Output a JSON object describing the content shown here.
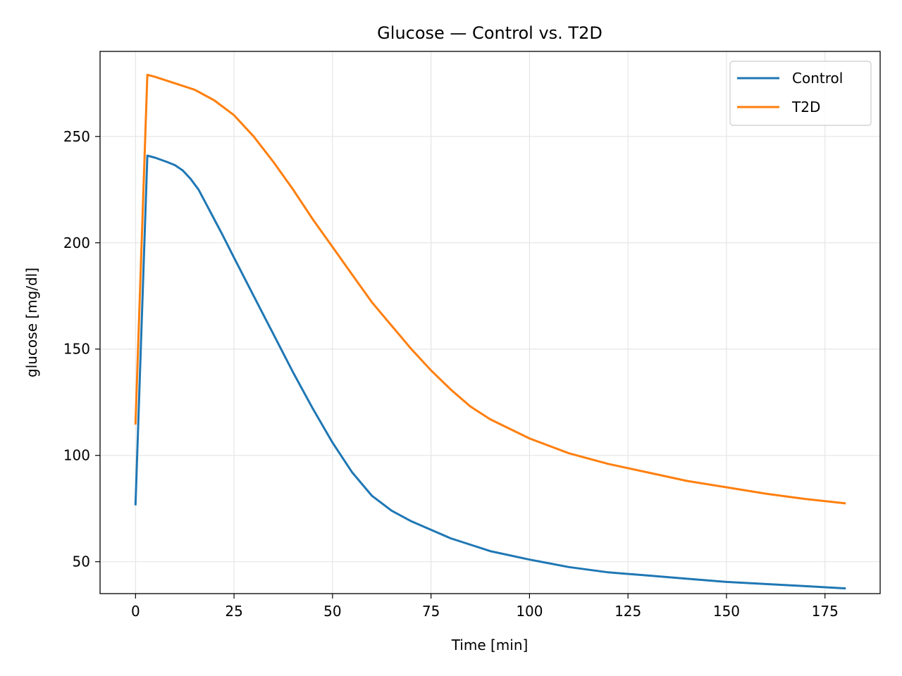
{
  "chart_data": {
    "type": "line",
    "title": "Glucose — Control vs. T2D",
    "xlabel": "Time [min]",
    "ylabel": "glucose [mg/dl]",
    "xlim": [
      -9,
      189
    ],
    "ylim": [
      35,
      290
    ],
    "xticks": [
      0,
      25,
      50,
      75,
      100,
      125,
      150,
      175
    ],
    "yticks": [
      50,
      100,
      150,
      200,
      250
    ],
    "grid": true,
    "legend_position": "top-right",
    "series": [
      {
        "name": "Control",
        "color": "#1f77b4",
        "x": [
          0,
          3,
          5,
          8,
          10,
          12,
          14,
          16,
          18,
          20,
          22,
          25,
          30,
          35,
          40,
          45,
          50,
          55,
          60,
          65,
          70,
          75,
          80,
          85,
          90,
          100,
          110,
          120,
          130,
          140,
          150,
          160,
          170,
          180
        ],
        "y": [
          77,
          241,
          240,
          238,
          236.5,
          234,
          230,
          225,
          218,
          211,
          204,
          193,
          175,
          157,
          139,
          122,
          106,
          92,
          81,
          74,
          69,
          65,
          61,
          58,
          55,
          51,
          47.5,
          45,
          43.5,
          42,
          40.5,
          39.5,
          38.5,
          37.5
        ]
      },
      {
        "name": "T2D",
        "color": "#ff7f0e",
        "x": [
          0,
          3,
          5,
          10,
          15,
          20,
          25,
          30,
          35,
          40,
          45,
          50,
          55,
          60,
          65,
          70,
          75,
          80,
          85,
          90,
          100,
          110,
          120,
          130,
          140,
          150,
          160,
          170,
          180
        ],
        "y": [
          115,
          279,
          278,
          275,
          272,
          267,
          260,
          250,
          238,
          225,
          211,
          198,
          185,
          172,
          161,
          150,
          140,
          131,
          123,
          117,
          108,
          101,
          96,
          92,
          88,
          85,
          82,
          79.5,
          77.5
        ]
      }
    ]
  }
}
